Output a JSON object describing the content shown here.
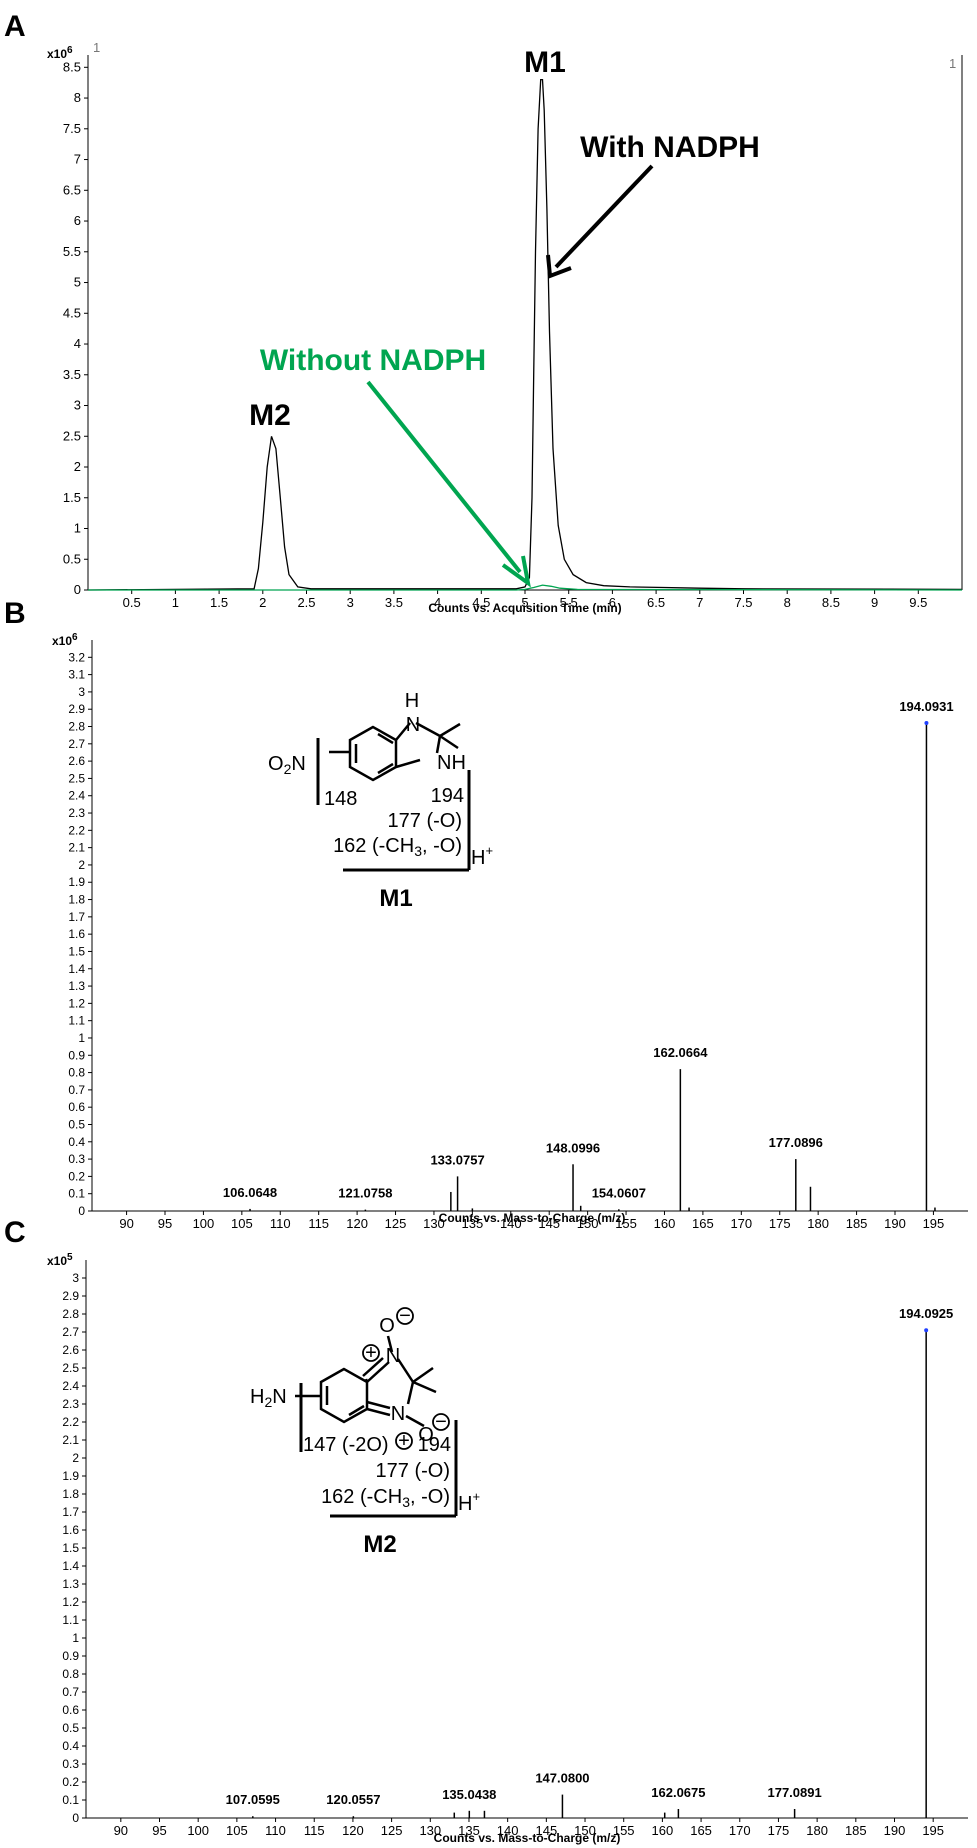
{
  "panels": {
    "a": "A",
    "b": "B",
    "c": "C"
  },
  "chart_data": [
    {
      "type": "line",
      "panel": "A",
      "corner_left": "1",
      "corner_right": "1",
      "exponent": "x10",
      "exponent_power": "6",
      "xlabel": "Counts vs. Acquisition Time (min)",
      "xlim": [
        0,
        10
      ],
      "ylim": [
        0,
        8.7
      ],
      "xticks": [
        0.5,
        1,
        1.5,
        2,
        2.5,
        3,
        3.5,
        4,
        4.5,
        5,
        5.5,
        6,
        6.5,
        7,
        7.5,
        8,
        8.5,
        9,
        9.5
      ],
      "yticks": [
        0,
        0.5,
        1,
        1.5,
        2,
        2.5,
        3,
        3.5,
        4,
        4.5,
        5,
        5.5,
        6,
        6.5,
        7,
        7.5,
        8,
        8.5
      ],
      "series": [
        {
          "name": "With NADPH",
          "color": "#000000",
          "x": [
            0.0,
            1.9,
            1.95,
            2.0,
            2.05,
            2.1,
            2.15,
            2.2,
            2.25,
            2.3,
            2.4,
            2.55,
            4.9,
            5.0,
            5.05,
            5.08,
            5.1,
            5.12,
            5.15,
            5.18,
            5.2,
            5.22,
            5.25,
            5.28,
            5.32,
            5.38,
            5.45,
            5.55,
            5.7,
            5.9,
            6.2,
            6.6,
            7.0,
            7.5,
            10.0
          ],
          "y": [
            0.0,
            0.02,
            0.35,
            1.1,
            2.0,
            2.5,
            2.3,
            1.5,
            0.7,
            0.25,
            0.05,
            0.02,
            0.02,
            0.05,
            0.2,
            1.5,
            3.5,
            5.5,
            7.5,
            8.3,
            8.3,
            7.8,
            6.2,
            4.2,
            2.3,
            1.05,
            0.5,
            0.25,
            0.12,
            0.07,
            0.05,
            0.04,
            0.03,
            0.02,
            0.01
          ]
        },
        {
          "name": "Without NADPH",
          "color": "#00a550",
          "x": [
            0.0,
            4.9,
            5.0,
            5.1,
            5.2,
            5.3,
            5.4,
            5.6,
            10.0
          ],
          "y": [
            0.0,
            0.0,
            0.01,
            0.04,
            0.08,
            0.06,
            0.03,
            0.01,
            0.0
          ]
        }
      ],
      "annotations": {
        "m1": "M1",
        "m2": "M2",
        "with": "With NADPH",
        "without": "Without NADPH"
      }
    },
    {
      "type": "bar",
      "panel": "B",
      "exponent": "x10",
      "exponent_power": "6",
      "xlabel": "Counts vs. Mass-to-Charge (m/z)",
      "xlim": [
        85.5,
        199.5
      ],
      "ylim": [
        0,
        3.3
      ],
      "xticks": [
        90,
        95,
        100,
        105,
        110,
        115,
        120,
        125,
        130,
        135,
        140,
        145,
        150,
        155,
        160,
        165,
        170,
        175,
        180,
        185,
        190,
        195
      ],
      "yticks": [
        0,
        0.1,
        0.2,
        0.3,
        0.4,
        0.5,
        0.6,
        0.7,
        0.8,
        0.9,
        1,
        1.1,
        1.2,
        1.3,
        1.4,
        1.5,
        1.6,
        1.7,
        1.8,
        1.9,
        2,
        2.1,
        2.2,
        2.3,
        2.4,
        2.5,
        2.6,
        2.7,
        2.8,
        2.9,
        3,
        3.1,
        3.2
      ],
      "peaks": [
        {
          "mz": 106.0648,
          "intensity": 0.012,
          "label": "106.0648"
        },
        {
          "mz": 121.0758,
          "intensity": 0.008,
          "label": "121.0758"
        },
        {
          "mz": 132.2,
          "intensity": 0.11
        },
        {
          "mz": 133.0757,
          "intensity": 0.2,
          "label": "133.0757"
        },
        {
          "mz": 135.0,
          "intensity": 0.015
        },
        {
          "mz": 148.0996,
          "intensity": 0.27,
          "label": "148.0996"
        },
        {
          "mz": 149.1,
          "intensity": 0.03
        },
        {
          "mz": 154.0607,
          "intensity": 0.01,
          "label": "154.0607"
        },
        {
          "mz": 162.0664,
          "intensity": 0.82,
          "label": "162.0664"
        },
        {
          "mz": 163.2,
          "intensity": 0.02
        },
        {
          "mz": 177.0896,
          "intensity": 0.3,
          "label": "177.0896"
        },
        {
          "mz": 179.0,
          "intensity": 0.14
        },
        {
          "mz": 194.0931,
          "intensity": 2.82,
          "label": "194.0931"
        },
        {
          "mz": 195.2,
          "intensity": 0.02
        }
      ],
      "structure": {
        "h": "H",
        "nh": "NH",
        "no2": "O",
        "no2_sub": "2",
        "n_sym": "N",
        "frag1": "148",
        "frag2": "194",
        "frag3": "177 (-O)",
        "frag4": "162 (-CH",
        "frag4_sub": "3",
        "frag4_end": ", -O)",
        "proton": "H",
        "proton_sup": "+",
        "name": "M1"
      }
    },
    {
      "type": "bar",
      "panel": "C",
      "exponent": "x10",
      "exponent_power": "5",
      "xlabel": "Counts vs. Mass-to-Charge (m/z)",
      "xlim": [
        85.5,
        199.5
      ],
      "ylim": [
        0,
        3.1
      ],
      "xticks": [
        90,
        95,
        100,
        105,
        110,
        115,
        120,
        125,
        130,
        135,
        140,
        145,
        150,
        155,
        160,
        165,
        170,
        175,
        180,
        185,
        190,
        195
      ],
      "yticks": [
        0,
        0.1,
        0.2,
        0.3,
        0.4,
        0.5,
        0.6,
        0.7,
        0.8,
        0.9,
        1,
        1.1,
        1.2,
        1.3,
        1.4,
        1.5,
        1.6,
        1.7,
        1.8,
        1.9,
        2,
        2.1,
        2.2,
        2.3,
        2.4,
        2.5,
        2.6,
        2.7,
        2.8,
        2.9,
        3
      ],
      "peaks": [
        {
          "mz": 107.0595,
          "intensity": 0.01,
          "label": "107.0595"
        },
        {
          "mz": 120.0557,
          "intensity": 0.01,
          "label": "120.0557"
        },
        {
          "mz": 133.1,
          "intensity": 0.03
        },
        {
          "mz": 135.0438,
          "intensity": 0.04,
          "label": "135.0438"
        },
        {
          "mz": 137.0,
          "intensity": 0.04
        },
        {
          "mz": 147.08,
          "intensity": 0.13,
          "label": "147.0800"
        },
        {
          "mz": 160.3,
          "intensity": 0.03
        },
        {
          "mz": 162.0675,
          "intensity": 0.05,
          "label": "162.0675"
        },
        {
          "mz": 177.0891,
          "intensity": 0.05,
          "label": "177.0891"
        },
        {
          "mz": 194.0925,
          "intensity": 2.71,
          "label": "194.0925"
        }
      ],
      "structure": {
        "o_top": "O",
        "n_top": "N",
        "n_bot": "N",
        "o_bot": "O",
        "plus": "+",
        "minus": "−",
        "h2n": "H",
        "h2n_sub": "2",
        "h2n_end": "N",
        "frag1": "147 (-2O)",
        "frag2": "194",
        "frag3": "177 (-O)",
        "frag4": "162 (-CH",
        "frag4_sub": "3",
        "frag4_end": ", -O)",
        "proton": "H",
        "proton_sup": "+",
        "name": "M2"
      }
    }
  ]
}
